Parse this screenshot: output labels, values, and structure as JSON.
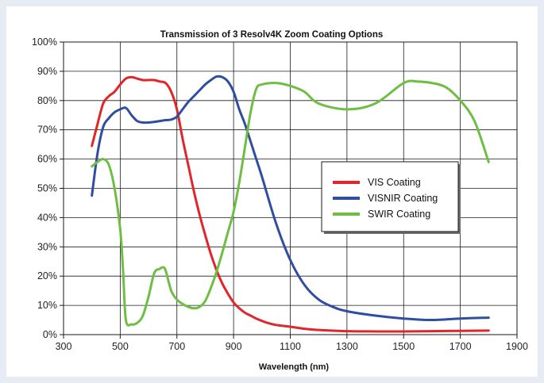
{
  "chart_data": {
    "type": "line",
    "title": "Transmission of 3 Resolv4K Zoom Coating Options",
    "xlabel": "Wavelength (nm)",
    "ylabel": "",
    "xlim": [
      300,
      1900
    ],
    "ylim": [
      0,
      100
    ],
    "xticks": [
      300,
      500,
      700,
      900,
      1100,
      1300,
      1500,
      1700,
      1900
    ],
    "yticks": [
      0,
      10,
      20,
      30,
      40,
      50,
      60,
      70,
      80,
      90,
      100
    ],
    "ytick_labels": [
      "0%",
      "10%",
      "20%",
      "30%",
      "40%",
      "50%",
      "60%",
      "70%",
      "80%",
      "90%",
      "100%"
    ],
    "grid": true,
    "legend_position": "center-right",
    "series": [
      {
        "name": "VIS Coating",
        "color": "#e0252b",
        "x": [
          400,
          420,
          440,
          460,
          480,
          500,
          520,
          540,
          560,
          580,
          600,
          620,
          640,
          660,
          680,
          700,
          720,
          740,
          760,
          780,
          800,
          820,
          840,
          860,
          880,
          900,
          920,
          940,
          960,
          980,
          1000,
          1020,
          1050,
          1100,
          1150,
          1200,
          1300,
          1400,
          1500,
          1600,
          1700,
          1800
        ],
        "y": [
          64.5,
          72,
          79,
          81.5,
          83,
          85.5,
          87.5,
          88,
          87.5,
          87,
          87,
          87,
          86.5,
          86,
          83,
          77,
          67,
          58,
          49,
          41,
          34,
          27.5,
          22,
          17.5,
          14,
          11,
          9,
          7.5,
          6.5,
          5.5,
          4.7,
          4,
          3.3,
          2.7,
          2,
          1.6,
          1.2,
          1.1,
          1.1,
          1.2,
          1.3,
          1.4
        ]
      },
      {
        "name": "VISNIR Coating",
        "color": "#2f4e9f",
        "x": [
          400,
          420,
          440,
          460,
          480,
          500,
          520,
          540,
          560,
          580,
          600,
          620,
          640,
          660,
          680,
          700,
          720,
          740,
          760,
          780,
          800,
          820,
          840,
          860,
          880,
          900,
          920,
          940,
          960,
          980,
          1000,
          1050,
          1100,
          1150,
          1200,
          1250,
          1300,
          1400,
          1500,
          1600,
          1700,
          1800
        ],
        "y": [
          47.5,
          62,
          71,
          74,
          76,
          77,
          77.5,
          75,
          73,
          72.5,
          72.5,
          72.7,
          73,
          73.3,
          73.5,
          74.5,
          77,
          79.5,
          81.5,
          83.5,
          85.5,
          87,
          88.2,
          88,
          86.5,
          83,
          77,
          72,
          66,
          60,
          54,
          38,
          25.5,
          17,
          12,
          9.5,
          8,
          6.5,
          5.5,
          5,
          5.5,
          5.8
        ]
      },
      {
        "name": "SWIR Coating",
        "color": "#6fbe44",
        "x": [
          400,
          420,
          440,
          460,
          480,
          500,
          510,
          520,
          540,
          560,
          580,
          600,
          620,
          640,
          650,
          660,
          680,
          700,
          720,
          740,
          760,
          780,
          800,
          820,
          840,
          860,
          880,
          900,
          920,
          940,
          960,
          980,
          1000,
          1050,
          1100,
          1150,
          1200,
          1300,
          1400,
          1500,
          1550,
          1600,
          1650,
          1700,
          1750,
          1800
        ],
        "y": [
          57.5,
          59,
          60,
          58,
          50,
          36,
          22,
          5,
          3.5,
          4,
          6.5,
          13,
          21,
          22.5,
          23,
          22,
          15,
          12,
          10.5,
          9.5,
          9,
          9.5,
          11.5,
          16,
          21.5,
          28,
          35,
          42,
          52,
          64,
          76,
          84,
          85.5,
          86,
          85,
          83,
          79,
          77,
          79,
          86,
          86.5,
          86,
          84.5,
          80,
          73,
          59
        ]
      }
    ]
  }
}
